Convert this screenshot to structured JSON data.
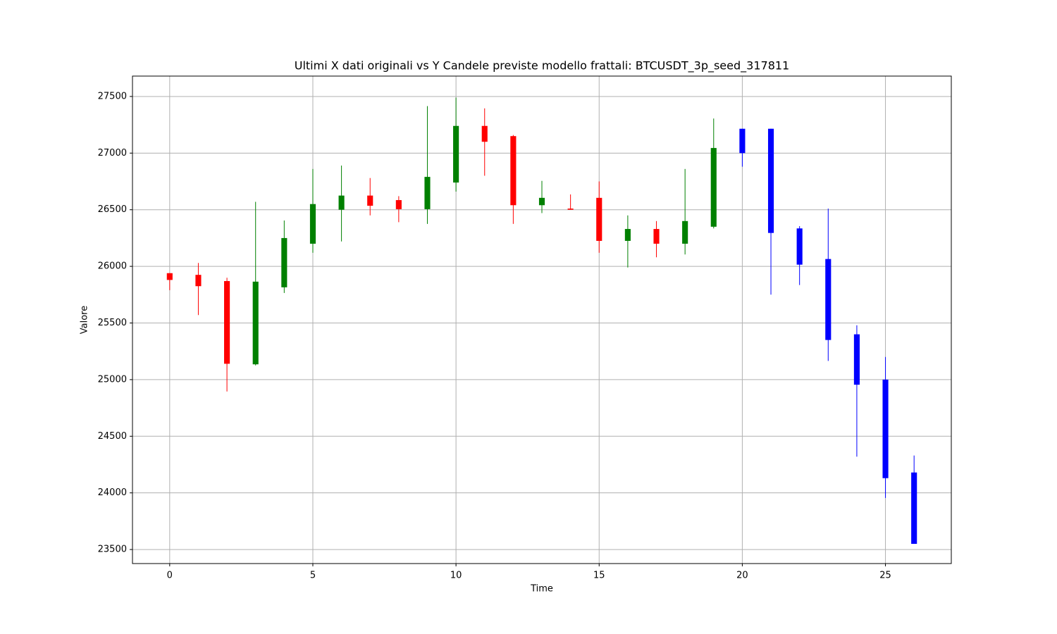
{
  "chart_data": {
    "type": "candlestick",
    "title": "Ultimi X dati originali vs Y Candele previste modello frattali: BTCUSDT_3p_seed_317811",
    "x_label": "Time",
    "y_label": "Valore",
    "x": [
      0,
      1,
      2,
      3,
      4,
      5,
      6,
      7,
      8,
      9,
      10,
      11,
      12,
      13,
      14,
      15,
      16,
      17,
      18,
      19,
      20,
      21,
      22,
      23,
      24,
      25,
      26
    ],
    "open": [
      25940,
      25925,
      25870,
      25135,
      25815,
      26200,
      26500,
      26625,
      26585,
      26505,
      26740,
      27240,
      27150,
      26540,
      26510,
      26605,
      26225,
      26330,
      26200,
      26350,
      27215,
      27215,
      26335,
      26065,
      25400,
      25000,
      24180
    ],
    "high": [
      25940,
      26030,
      25900,
      26570,
      26405,
      26860,
      26890,
      26780,
      26620,
      27415,
      27490,
      27395,
      27160,
      26755,
      26635,
      26750,
      26450,
      26400,
      26860,
      27305,
      27215,
      27215,
      26355,
      26510,
      25480,
      25200,
      24330
    ],
    "low": [
      25790,
      25570,
      24895,
      25125,
      25765,
      26120,
      26220,
      26450,
      26390,
      26375,
      26660,
      26800,
      26375,
      26470,
      26500,
      26120,
      25990,
      26080,
      26105,
      26335,
      26880,
      25750,
      25835,
      25165,
      24320,
      23955,
      23550
    ],
    "close": [
      25880,
      25825,
      25140,
      25865,
      26250,
      26550,
      26625,
      26535,
      26505,
      26790,
      27240,
      27100,
      26540,
      26605,
      26500,
      26225,
      26330,
      26200,
      26400,
      27045,
      27000,
      26295,
      26015,
      25350,
      24955,
      24130,
      23550
    ],
    "colors": [
      "red",
      "red",
      "red",
      "green",
      "green",
      "green",
      "green",
      "red",
      "red",
      "green",
      "green",
      "red",
      "red",
      "green",
      "red",
      "red",
      "green",
      "red",
      "green",
      "green",
      "blue",
      "blue",
      "blue",
      "blue",
      "blue",
      "blue",
      "blue"
    ],
    "xlim": [
      -1.3,
      27.3
    ],
    "ylim": [
      23376,
      27680
    ],
    "xticks": [
      0,
      5,
      10,
      15,
      20,
      25
    ],
    "yticks": [
      23500,
      24000,
      24500,
      25000,
      25500,
      26000,
      26500,
      27000,
      27500
    ],
    "grid": true
  }
}
